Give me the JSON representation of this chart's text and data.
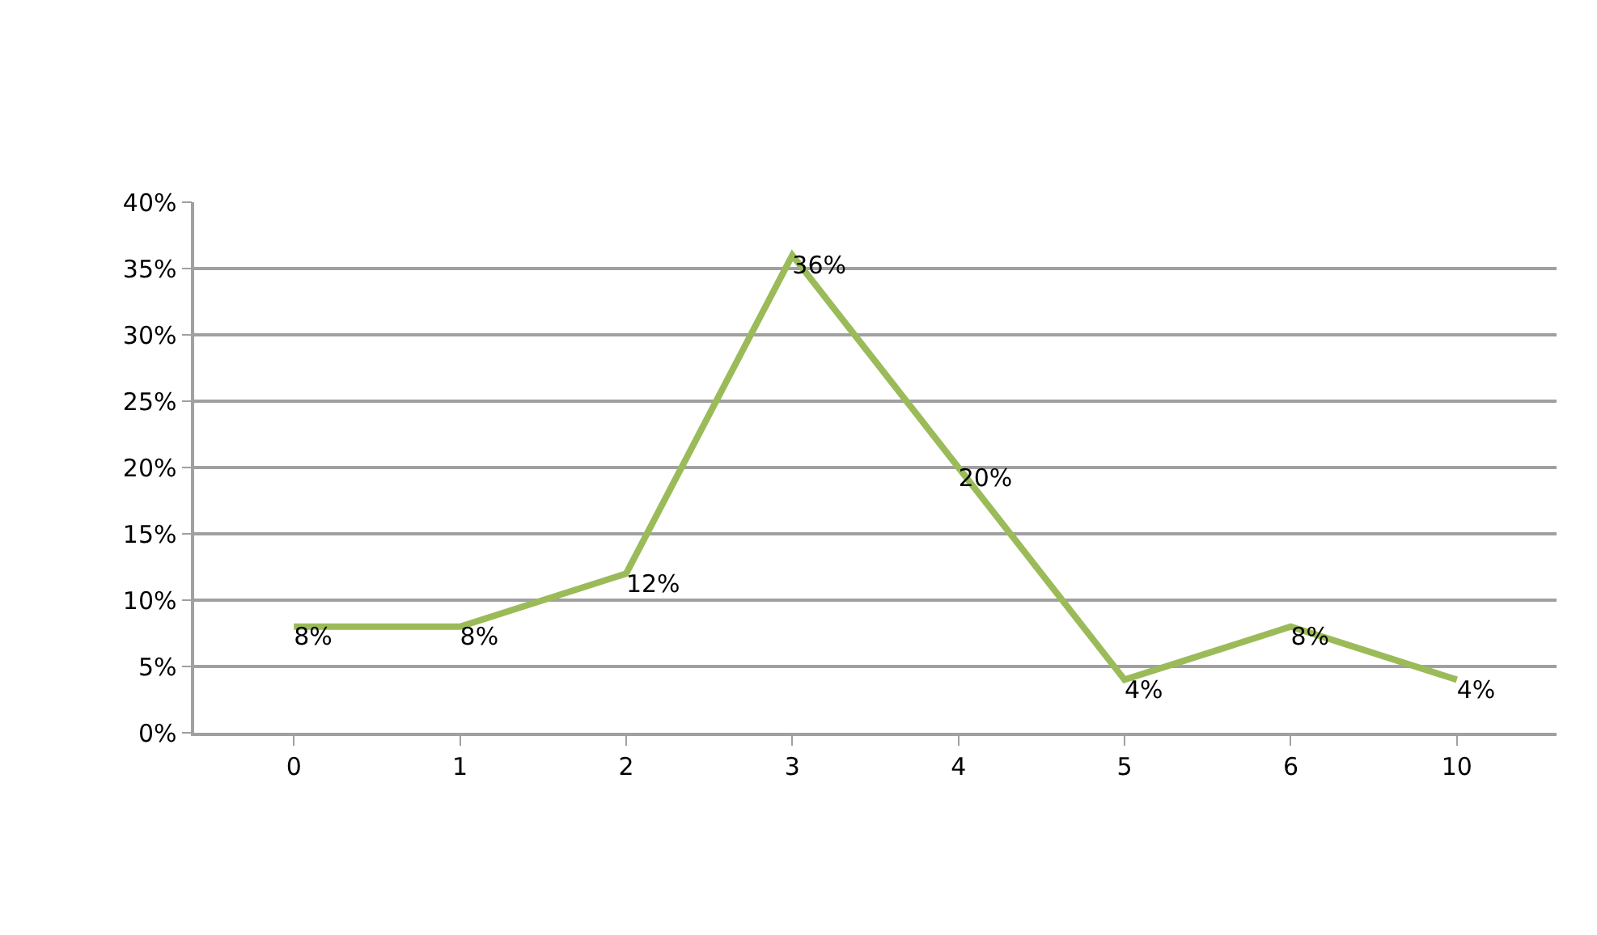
{
  "chart_data": {
    "type": "line",
    "categories": [
      "0",
      "1",
      "2",
      "3",
      "4",
      "5",
      "6",
      "10"
    ],
    "series": [
      {
        "color": "#9bbb59",
        "values": [
          8,
          8,
          12,
          36,
          20,
          4,
          8,
          4
        ]
      }
    ],
    "value_labels": [
      "8%",
      "8%",
      "12%",
      "36%",
      "20%",
      "4%",
      "8%",
      "4%"
    ],
    "ylim": [
      0,
      40
    ],
    "yticks": [
      {
        "value": 0,
        "label": "0%"
      },
      {
        "value": 5,
        "label": "5%"
      },
      {
        "value": 10,
        "label": "10%"
      },
      {
        "value": 15,
        "label": "15%"
      },
      {
        "value": 20,
        "label": "20%"
      },
      {
        "value": 25,
        "label": "25%"
      },
      {
        "value": 30,
        "label": "30%"
      },
      {
        "value": 35,
        "label": "35%"
      },
      {
        "value": 40,
        "label": "40%"
      }
    ],
    "grid": "y",
    "legend": false,
    "marker": "none",
    "line_style": "solid"
  }
}
